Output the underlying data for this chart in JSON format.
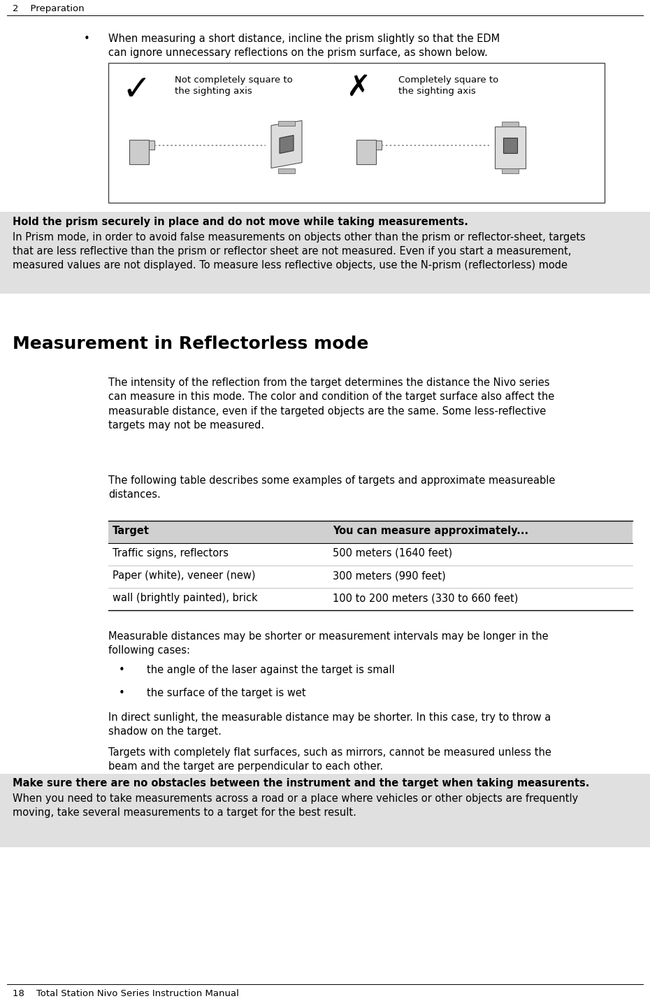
{
  "page_bg": "#ffffff",
  "note_bg": "#e0e0e0",
  "header_text": "2    Preparation",
  "footer_text": "18    Total Station Nivo Series Instruction Manual",
  "bullet_text_1a": "When measuring a short distance, incline the prism slightly so that the EDM",
  "bullet_text_1b": "can ignore unnecessary reflections on the prism surface, as shown below.",
  "diagram_left_label1": "Not completely square to",
  "diagram_left_label2": "the sighting axis",
  "diagram_right_label1": "Completely square to",
  "diagram_right_label2": "the sighting axis",
  "note_box1_text": "Hold the prism securely in place and do not move while taking measurements.",
  "note_box2_text": "In Prism mode, in order to avoid false measurements on objects other than the prism or reflector-sheet, targets\nthat are less reflective than the prism or reflector sheet are not measured. Even if you start a measurement,\nmeasured values are not displayed. To measure less reflective objects, use the N-prism (reflectorless) mode",
  "section_title": "Measurement in Reflectorless mode",
  "para1": "The intensity of the reflection from the target determines the distance the Nivo series\ncan measure in this mode. The color and condition of the target surface also affect the\nmeasurable distance, even if the targeted objects are the same. Some less-reflective\ntargets may not be measured.",
  "para2": "The following table describes some examples of targets and approximate measureable\ndistances.",
  "table_rows": [
    [
      "Target",
      "You can measure approximately..."
    ],
    [
      "Traffic signs, reflectors",
      "500 meters (1640 feet)"
    ],
    [
      "Paper (white), veneer (new)",
      "300 meters (990 feet)"
    ],
    [
      "wall (brightly painted), brick",
      "100 to 200 meters (330 to 660 feet)"
    ]
  ],
  "table_header_bg": "#d0d0d0",
  "para3": "Measurable distances may be shorter or measurement intervals may be longer in the\nfollowing cases:",
  "bullet2": "the angle of the laser against the target is small",
  "bullet3": "the surface of the target is wet",
  "para4": "In direct sunlight, the measurable distance may be shorter. In this case, try to throw a\nshadow on the target.",
  "para5": "Targets with completely flat surfaces, such as mirrors, cannot be measured unless the\nbeam and the target are perpendicular to each other.",
  "note_box3_text1": "Make sure there are no obstacles between the instrument and the target when taking measurents.",
  "note_box3_text2": "When you need to take measurements across a road or a place where vehicles or other objects are frequently\nmoving, take several measurements to a target for the best result.",
  "body_fontsize": 10.5,
  "small_fontsize": 9.0,
  "title_fontsize": 18,
  "header_fontsize": 9.5
}
